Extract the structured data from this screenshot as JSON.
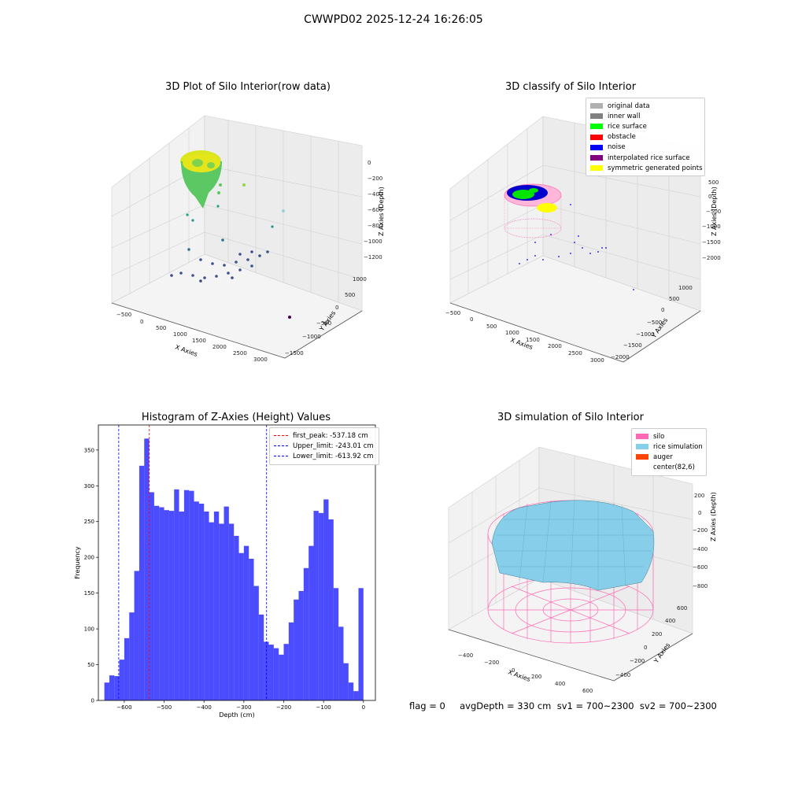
{
  "figure": {
    "title": "CWWPD02 2025-12-24 16:26:05",
    "footer": "flag = 0     avgDepth = 330 cm  sv1 = 700~2300  sv2 = 700~2300"
  },
  "chart_data": [
    {
      "type": "scatter",
      "subtype": "3d-scatter",
      "title": "3D Plot of Silo Interior(row data)",
      "xlabel": "X Axies",
      "ylabel": "Y Axies",
      "zlabel": "Z Axies (Depth)",
      "x_ticks": [
        "−500",
        "0",
        "500",
        "1000",
        "1500",
        "2000",
        "2500",
        "3000"
      ],
      "y_ticks": [
        "1000",
        "500",
        "0",
        "−500",
        "−1000",
        "−1500"
      ],
      "z_ticks": [
        "0",
        "−200",
        "−400",
        "−600",
        "−800",
        "−1000",
        "−1200"
      ],
      "grid": true,
      "colormap": "viridis"
    },
    {
      "type": "scatter",
      "subtype": "3d-classification",
      "title": "3D classify of Silo Interior",
      "xlabel": "X Axies",
      "ylabel": "Y Axies",
      "zlabel": "Z Axies (Depth)",
      "x_ticks": [
        "−500",
        "0",
        "500",
        "1000",
        "1500",
        "2000",
        "2500",
        "3000"
      ],
      "y_ticks": [
        "1000",
        "500",
        "0",
        "−500",
        "−1000",
        "−1500",
        "−2000"
      ],
      "z_ticks": [
        "500",
        "0",
        "−500",
        "−1000",
        "−1500",
        "−2000"
      ],
      "grid": true,
      "legend_position": "top-right",
      "legend": [
        {
          "name": "original data",
          "color": "#b0b0b0"
        },
        {
          "name": "inner wall",
          "color": "#808080"
        },
        {
          "name": "rice surface",
          "color": "#00ff00"
        },
        {
          "name": "obstacle",
          "color": "#ff0000"
        },
        {
          "name": "noise",
          "color": "#0000ff"
        },
        {
          "name": "interpolated rice surface",
          "color": "#800080"
        },
        {
          "name": "symmetric generated points",
          "color": "#ffff00"
        }
      ]
    },
    {
      "type": "bar",
      "subtype": "histogram",
      "title": "Histogram of Z-Axies (Height) Values",
      "xlabel": "Depth (cm)",
      "ylabel": "Frequency",
      "xlim": [
        -665,
        30
      ],
      "ylim": [
        0,
        385
      ],
      "x_ticks": [
        -600,
        -500,
        -400,
        -300,
        -200,
        -100,
        0
      ],
      "y_ticks": [
        0,
        50,
        100,
        150,
        200,
        250,
        300,
        350
      ],
      "bin_start": -650,
      "bin_width": 12.5,
      "bar_color": "#0000ff",
      "grid": false,
      "values": [
        25,
        35,
        34,
        57,
        87,
        123,
        181,
        328,
        366,
        291,
        272,
        270,
        266,
        265,
        295,
        264,
        294,
        293,
        278,
        275,
        264,
        249,
        264,
        247,
        271,
        247,
        230,
        206,
        216,
        198,
        160,
        120,
        82,
        78,
        73,
        64,
        79,
        109,
        141,
        153,
        185,
        216,
        265,
        262,
        281,
        253,
        157,
        103,
        52,
        25,
        13,
        157
      ],
      "legend_position": "top-right",
      "reference_lines": [
        {
          "name": "first_peak: -537.18 cm",
          "x": -537.18,
          "color": "#ff0000"
        },
        {
          "name": "Upper_limit: -243.01 cm",
          "x": -243.01,
          "color": "#0000ff"
        },
        {
          "name": "Lower_limit: -613.92 cm",
          "x": -613.92,
          "color": "#0000ff"
        }
      ]
    },
    {
      "type": "area",
      "subtype": "3d-surface",
      "title": "3D simulation of Silo Interior",
      "xlabel": "X Axies",
      "ylabel": "Y Axies",
      "zlabel": "Z Axies (Depth)",
      "x_ticks": [
        "−400",
        "−200",
        "0",
        "200",
        "400",
        "600"
      ],
      "y_ticks": [
        "600",
        "400",
        "200",
        "0",
        "−200",
        "−400"
      ],
      "z_ticks": [
        "200",
        "0",
        "−200",
        "−400",
        "−600",
        "−800"
      ],
      "grid": true,
      "legend_position": "top-right",
      "legend": [
        {
          "name": "silo",
          "color": "#ff69b4"
        },
        {
          "name": "rice simulation",
          "color": "#87ceeb"
        },
        {
          "name": "auger",
          "color": "#ff4500"
        },
        {
          "name": "center(82,6)",
          "color": "#ffffff"
        }
      ]
    }
  ]
}
